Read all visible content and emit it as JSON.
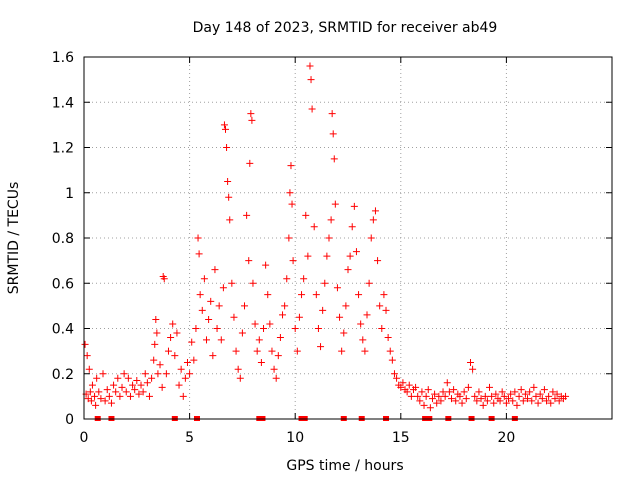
{
  "chart_data": {
    "type": "scatter",
    "title": "Day 148 of 2023, SRMTID for receiver ab49",
    "xlabel": "GPS time / hours",
    "ylabel": "SRMTID / TECUs",
    "xlim": [
      0,
      25
    ],
    "ylim": [
      0,
      1.6
    ],
    "x_ticks": [
      0,
      5,
      10,
      15,
      20
    ],
    "x_tick_labels": [
      "0",
      "5",
      "10",
      "15",
      "20"
    ],
    "y_ticks": [
      0,
      0.2,
      0.4,
      0.6,
      0.8,
      1,
      1.2,
      1.4,
      1.6
    ],
    "y_tick_labels": [
      "0",
      "0.2",
      "0.4",
      "0.6",
      "0.8",
      "1",
      "1.2",
      "1.4",
      "1.6"
    ],
    "grid": true,
    "marker": "plus",
    "color": "#ff0000",
    "gap_markers_x": [
      0.65,
      1.3,
      4.3,
      5.35,
      8.3,
      8.45,
      10.3,
      10.45,
      12.3,
      13.15,
      14.3,
      16.15,
      16.35,
      17.25,
      18.35,
      19.3,
      20.4
    ],
    "series": [
      {
        "name": "SRMTID",
        "points": [
          [
            0.05,
            0.33
          ],
          [
            0.1,
            0.11
          ],
          [
            0.15,
            0.28
          ],
          [
            0.2,
            0.09
          ],
          [
            0.25,
            0.22
          ],
          [
            0.3,
            0.12
          ],
          [
            0.35,
            0.08
          ],
          [
            0.4,
            0.15
          ],
          [
            0.5,
            0.1
          ],
          [
            0.55,
            0.06
          ],
          [
            0.6,
            0.18
          ],
          [
            0.7,
            0.12
          ],
          [
            0.8,
            0.09
          ],
          [
            0.9,
            0.2
          ],
          [
            1.0,
            0.08
          ],
          [
            1.1,
            0.13
          ],
          [
            1.2,
            0.1
          ],
          [
            1.3,
            0.07
          ],
          [
            1.4,
            0.15
          ],
          [
            1.5,
            0.12
          ],
          [
            1.6,
            0.18
          ],
          [
            1.7,
            0.1
          ],
          [
            1.8,
            0.14
          ],
          [
            1.9,
            0.2
          ],
          [
            2.0,
            0.12
          ],
          [
            2.1,
            0.18
          ],
          [
            2.2,
            0.1
          ],
          [
            2.3,
            0.15
          ],
          [
            2.4,
            0.13
          ],
          [
            2.5,
            0.17
          ],
          [
            2.6,
            0.11
          ],
          [
            2.7,
            0.15
          ],
          [
            2.8,
            0.12
          ],
          [
            2.9,
            0.2
          ],
          [
            3.0,
            0.16
          ],
          [
            3.1,
            0.1
          ],
          [
            3.2,
            0.18
          ],
          [
            3.3,
            0.26
          ],
          [
            3.35,
            0.33
          ],
          [
            3.4,
            0.44
          ],
          [
            3.45,
            0.38
          ],
          [
            3.5,
            0.2
          ],
          [
            3.6,
            0.24
          ],
          [
            3.7,
            0.14
          ],
          [
            3.75,
            0.63
          ],
          [
            3.8,
            0.62
          ],
          [
            3.9,
            0.2
          ],
          [
            4.0,
            0.3
          ],
          [
            4.1,
            0.36
          ],
          [
            4.2,
            0.42
          ],
          [
            4.3,
            0.28
          ],
          [
            4.4,
            0.38
          ],
          [
            4.5,
            0.15
          ],
          [
            4.6,
            0.22
          ],
          [
            4.7,
            0.1
          ],
          [
            4.8,
            0.18
          ],
          [
            4.9,
            0.25
          ],
          [
            5.0,
            0.2
          ],
          [
            5.1,
            0.34
          ],
          [
            5.2,
            0.26
          ],
          [
            5.3,
            0.4
          ],
          [
            5.4,
            0.8
          ],
          [
            5.45,
            0.73
          ],
          [
            5.5,
            0.55
          ],
          [
            5.6,
            0.48
          ],
          [
            5.7,
            0.62
          ],
          [
            5.8,
            0.35
          ],
          [
            5.9,
            0.44
          ],
          [
            6.0,
            0.52
          ],
          [
            6.1,
            0.28
          ],
          [
            6.2,
            0.66
          ],
          [
            6.3,
            0.4
          ],
          [
            6.4,
            0.5
          ],
          [
            6.5,
            0.35
          ],
          [
            6.6,
            0.58
          ],
          [
            6.65,
            1.3
          ],
          [
            6.7,
            1.28
          ],
          [
            6.75,
            1.2
          ],
          [
            6.8,
            1.05
          ],
          [
            6.85,
            0.98
          ],
          [
            6.9,
            0.88
          ],
          [
            7.0,
            0.6
          ],
          [
            7.1,
            0.45
          ],
          [
            7.2,
            0.3
          ],
          [
            7.3,
            0.22
          ],
          [
            7.4,
            0.18
          ],
          [
            7.5,
            0.38
          ],
          [
            7.6,
            0.5
          ],
          [
            7.7,
            0.9
          ],
          [
            7.8,
            0.7
          ],
          [
            7.85,
            1.13
          ],
          [
            7.9,
            1.35
          ],
          [
            7.95,
            1.32
          ],
          [
            8.0,
            0.6
          ],
          [
            8.1,
            0.42
          ],
          [
            8.2,
            0.3
          ],
          [
            8.3,
            0.35
          ],
          [
            8.4,
            0.25
          ],
          [
            8.5,
            0.4
          ],
          [
            8.6,
            0.68
          ],
          [
            8.7,
            0.55
          ],
          [
            8.8,
            0.42
          ],
          [
            8.9,
            0.3
          ],
          [
            9.0,
            0.22
          ],
          [
            9.1,
            0.18
          ],
          [
            9.2,
            0.28
          ],
          [
            9.3,
            0.36
          ],
          [
            9.4,
            0.46
          ],
          [
            9.5,
            0.5
          ],
          [
            9.6,
            0.62
          ],
          [
            9.7,
            0.8
          ],
          [
            9.75,
            1.0
          ],
          [
            9.8,
            1.12
          ],
          [
            9.85,
            0.95
          ],
          [
            9.9,
            0.7
          ],
          [
            10.0,
            0.4
          ],
          [
            10.1,
            0.3
          ],
          [
            10.2,
            0.45
          ],
          [
            10.3,
            0.55
          ],
          [
            10.4,
            0.62
          ],
          [
            10.5,
            0.9
          ],
          [
            10.6,
            0.72
          ],
          [
            10.7,
            1.56
          ],
          [
            10.75,
            1.5
          ],
          [
            10.8,
            1.37
          ],
          [
            10.9,
            0.85
          ],
          [
            11.0,
            0.55
          ],
          [
            11.1,
            0.4
          ],
          [
            11.2,
            0.32
          ],
          [
            11.3,
            0.48
          ],
          [
            11.4,
            0.6
          ],
          [
            11.5,
            0.72
          ],
          [
            11.6,
            0.8
          ],
          [
            11.7,
            0.88
          ],
          [
            11.75,
            1.35
          ],
          [
            11.8,
            1.26
          ],
          [
            11.85,
            1.15
          ],
          [
            11.9,
            0.95
          ],
          [
            12.0,
            0.58
          ],
          [
            12.1,
            0.45
          ],
          [
            12.2,
            0.3
          ],
          [
            12.3,
            0.38
          ],
          [
            12.4,
            0.5
          ],
          [
            12.5,
            0.66
          ],
          [
            12.6,
            0.72
          ],
          [
            12.7,
            0.85
          ],
          [
            12.8,
            0.94
          ],
          [
            12.9,
            0.74
          ],
          [
            13.0,
            0.55
          ],
          [
            13.1,
            0.42
          ],
          [
            13.2,
            0.35
          ],
          [
            13.3,
            0.3
          ],
          [
            13.4,
            0.46
          ],
          [
            13.5,
            0.6
          ],
          [
            13.6,
            0.8
          ],
          [
            13.7,
            0.88
          ],
          [
            13.8,
            0.92
          ],
          [
            13.9,
            0.7
          ],
          [
            14.0,
            0.5
          ],
          [
            14.1,
            0.4
          ],
          [
            14.2,
            0.55
          ],
          [
            14.3,
            0.48
          ],
          [
            14.4,
            0.36
          ],
          [
            14.5,
            0.3
          ],
          [
            14.6,
            0.26
          ],
          [
            14.7,
            0.2
          ],
          [
            14.8,
            0.18
          ],
          [
            14.9,
            0.15
          ],
          [
            15.0,
            0.14
          ],
          [
            15.1,
            0.16
          ],
          [
            15.2,
            0.13
          ],
          [
            15.3,
            0.12
          ],
          [
            15.4,
            0.15
          ],
          [
            15.5,
            0.1
          ],
          [
            15.6,
            0.13
          ],
          [
            15.7,
            0.14
          ],
          [
            15.8,
            0.1
          ],
          [
            15.9,
            0.08
          ],
          [
            16.0,
            0.12
          ],
          [
            16.1,
            0.06
          ],
          [
            16.2,
            0.1
          ],
          [
            16.3,
            0.13
          ],
          [
            16.4,
            0.05
          ],
          [
            16.5,
            0.09
          ],
          [
            16.6,
            0.11
          ],
          [
            16.7,
            0.07
          ],
          [
            16.8,
            0.1
          ],
          [
            16.9,
            0.08
          ],
          [
            17.0,
            0.12
          ],
          [
            17.1,
            0.1
          ],
          [
            17.2,
            0.16
          ],
          [
            17.3,
            0.12
          ],
          [
            17.4,
            0.09
          ],
          [
            17.5,
            0.13
          ],
          [
            17.6,
            0.08
          ],
          [
            17.7,
            0.11
          ],
          [
            17.8,
            0.1
          ],
          [
            17.9,
            0.07
          ],
          [
            18.0,
            0.12
          ],
          [
            18.1,
            0.09
          ],
          [
            18.2,
            0.14
          ],
          [
            18.3,
            0.25
          ],
          [
            18.4,
            0.22
          ],
          [
            18.5,
            0.1
          ],
          [
            18.6,
            0.08
          ],
          [
            18.7,
            0.12
          ],
          [
            18.8,
            0.09
          ],
          [
            18.9,
            0.06
          ],
          [
            19.0,
            0.1
          ],
          [
            19.1,
            0.08
          ],
          [
            19.2,
            0.14
          ],
          [
            19.3,
            0.1
          ],
          [
            19.4,
            0.07
          ],
          [
            19.5,
            0.11
          ],
          [
            19.6,
            0.09
          ],
          [
            19.7,
            0.08
          ],
          [
            19.8,
            0.12
          ],
          [
            19.9,
            0.1
          ],
          [
            20.0,
            0.07
          ],
          [
            20.1,
            0.09
          ],
          [
            20.2,
            0.11
          ],
          [
            20.3,
            0.08
          ],
          [
            20.4,
            0.12
          ],
          [
            20.5,
            0.06
          ],
          [
            20.6,
            0.1
          ],
          [
            20.7,
            0.13
          ],
          [
            20.8,
            0.08
          ],
          [
            20.9,
            0.11
          ],
          [
            21.0,
            0.09
          ],
          [
            21.1,
            0.12
          ],
          [
            21.2,
            0.08
          ],
          [
            21.3,
            0.14
          ],
          [
            21.4,
            0.1
          ],
          [
            21.5,
            0.07
          ],
          [
            21.6,
            0.11
          ],
          [
            21.7,
            0.09
          ],
          [
            21.8,
            0.13
          ],
          [
            21.9,
            0.08
          ],
          [
            22.0,
            0.1
          ],
          [
            22.1,
            0.07
          ],
          [
            22.2,
            0.12
          ],
          [
            22.3,
            0.09
          ],
          [
            22.4,
            0.11
          ],
          [
            22.5,
            0.08
          ],
          [
            22.6,
            0.1
          ],
          [
            22.7,
            0.09
          ],
          [
            22.8,
            0.1
          ]
        ]
      }
    ]
  }
}
